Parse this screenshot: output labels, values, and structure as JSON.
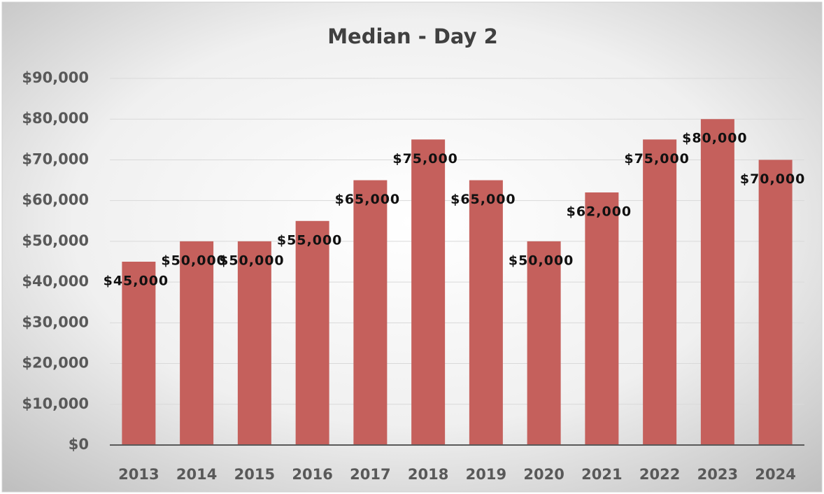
{
  "chart_data": {
    "type": "bar",
    "title": "Median - Day 2",
    "categories": [
      "2013",
      "2014",
      "2015",
      "2016",
      "2017",
      "2018",
      "2019",
      "2020",
      "2021",
      "2022",
      "2023",
      "2024"
    ],
    "values": [
      45000,
      50000,
      50000,
      55000,
      65000,
      75000,
      65000,
      50000,
      62000,
      75000,
      80000,
      70000
    ],
    "value_labels": [
      "$45,000",
      "$50,000",
      "$50,000",
      "$55,000",
      "$65,000",
      "$75,000",
      "$65,000",
      "$50,000",
      "$62,000",
      "$75,000",
      "$80,000",
      "$70,000"
    ],
    "color": "#c5605c",
    "ylim": [
      0,
      90000
    ],
    "yticks": [
      {
        "value": 0,
        "label": "$0"
      },
      {
        "value": 10000,
        "label": "$10,000"
      },
      {
        "value": 20000,
        "label": "$20,000"
      },
      {
        "value": 30000,
        "label": "$30,000"
      },
      {
        "value": 40000,
        "label": "$40,000"
      },
      {
        "value": 50000,
        "label": "$50,000"
      },
      {
        "value": 60000,
        "label": "$60,000"
      },
      {
        "value": 70000,
        "label": "$70,000"
      },
      {
        "value": 80000,
        "label": "$80,000"
      },
      {
        "value": 90000,
        "label": "$90,000"
      }
    ],
    "grid": true
  }
}
